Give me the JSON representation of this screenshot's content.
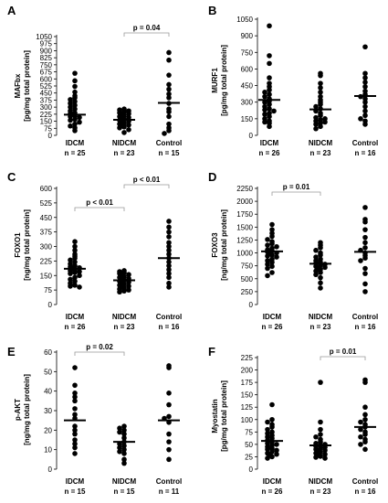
{
  "chart_data": [
    {
      "type": "scatter",
      "panel": "A",
      "ylabel": "MAFbx\n[pg/mg total protein]",
      "yticks": [
        0,
        75,
        150,
        225,
        300,
        375,
        450,
        525,
        600,
        675,
        750,
        825,
        900,
        975,
        1050
      ],
      "ylim": [
        0,
        1050
      ],
      "grid": false,
      "categories": [
        "IDCM\nn = 25",
        "NIDCM\nn = 23",
        "Control\nn = 15"
      ],
      "means": [
        220,
        165,
        345
      ],
      "series": [
        {
          "category": 0,
          "values": [
            660,
            580,
            520,
            460,
            420,
            400,
            380,
            360,
            340,
            320,
            300,
            280,
            260,
            240,
            230,
            210,
            200,
            190,
            170,
            160,
            140,
            120,
            100,
            80,
            50
          ]
        },
        {
          "category": 1,
          "values": [
            280,
            270,
            260,
            250,
            240,
            230,
            220,
            210,
            200,
            190,
            180,
            170,
            160,
            150,
            140,
            130,
            120,
            110,
            100,
            90,
            80,
            60,
            30
          ]
        },
        {
          "category": 2,
          "values": [
            880,
            800,
            640,
            540,
            490,
            440,
            400,
            340,
            280,
            250,
            200,
            120,
            80,
            50,
            20
          ]
        }
      ],
      "comparisons": [
        {
          "from": 1,
          "to": 2,
          "label": "p = 0.04"
        }
      ]
    },
    {
      "type": "scatter",
      "panel": "B",
      "ylabel": "MURF1\n[pg/mg total protein]",
      "yticks": [
        0,
        150,
        300,
        450,
        600,
        750,
        900,
        1050
      ],
      "ylim": [
        0,
        1050
      ],
      "grid": false,
      "categories": [
        "IDCM\nn = 26",
        "NIDCM\nn = 23",
        "Control\nn = 16"
      ],
      "means": [
        320,
        235,
        355
      ],
      "series": [
        {
          "category": 0,
          "values": [
            990,
            720,
            650,
            520,
            470,
            440,
            410,
            390,
            370,
            350,
            330,
            310,
            300,
            280,
            260,
            240,
            230,
            220,
            200,
            190,
            170,
            150,
            130,
            120,
            110,
            80
          ]
        },
        {
          "category": 1,
          "values": [
            560,
            540,
            470,
            430,
            390,
            350,
            320,
            300,
            280,
            260,
            240,
            220,
            200,
            180,
            160,
            150,
            140,
            130,
            120,
            110,
            100,
            80,
            60
          ]
        },
        {
          "category": 2,
          "values": [
            800,
            560,
            520,
            480,
            440,
            400,
            370,
            350,
            330,
            300,
            260,
            220,
            180,
            150,
            130,
            100
          ]
        }
      ],
      "comparisons": []
    },
    {
      "type": "scatter",
      "panel": "C",
      "ylabel": "FOXO1\n[ng/mg total protein]",
      "yticks": [
        0,
        75,
        150,
        225,
        300,
        375,
        450,
        525,
        600
      ],
      "ylim": [
        0,
        600
      ],
      "grid": false,
      "categories": [
        "IDCM\nn = 26",
        "NIDCM\nn = 23",
        "Control\nn = 16"
      ],
      "means": [
        185,
        125,
        240
      ],
      "series": [
        {
          "category": 0,
          "values": [
            325,
            300,
            280,
            260,
            250,
            240,
            230,
            220,
            210,
            200,
            195,
            190,
            185,
            180,
            175,
            170,
            165,
            160,
            150,
            140,
            130,
            120,
            110,
            100,
            95,
            90
          ]
        },
        {
          "category": 1,
          "values": [
            175,
            170,
            165,
            160,
            155,
            150,
            145,
            140,
            135,
            130,
            125,
            120,
            115,
            110,
            105,
            100,
            95,
            90,
            85,
            80,
            75,
            70,
            65
          ]
        },
        {
          "category": 2,
          "values": [
            430,
            400,
            375,
            350,
            320,
            300,
            280,
            260,
            240,
            220,
            200,
            180,
            160,
            140,
            110,
            90
          ]
        }
      ],
      "comparisons": [
        {
          "from": 0,
          "to": 1,
          "label": "p < 0.01"
        },
        {
          "from": 1,
          "to": 2,
          "label": "p < 0.01"
        }
      ]
    },
    {
      "type": "scatter",
      "panel": "D",
      "ylabel": "FOXO3\n[ng/mg total protein]",
      "yticks": [
        0,
        250,
        500,
        750,
        1000,
        1250,
        1500,
        1750,
        2000,
        2250
      ],
      "ylim": [
        0,
        2250
      ],
      "grid": false,
      "categories": [
        "IDCM\nn = 26",
        "NIDCM\nn = 23",
        "Control\nn = 16"
      ],
      "means": [
        1030,
        790,
        1020
      ],
      "series": [
        {
          "category": 0,
          "values": [
            1550,
            1450,
            1380,
            1320,
            1260,
            1220,
            1180,
            1150,
            1120,
            1090,
            1060,
            1040,
            1020,
            1000,
            980,
            960,
            940,
            920,
            880,
            850,
            820,
            780,
            740,
            700,
            620,
            560
          ]
        },
        {
          "category": 1,
          "values": [
            1200,
            1150,
            1100,
            1050,
            1000,
            960,
            920,
            880,
            850,
            820,
            800,
            780,
            760,
            740,
            720,
            700,
            680,
            650,
            620,
            580,
            520,
            420,
            320
          ]
        },
        {
          "category": 2,
          "values": [
            1880,
            1650,
            1600,
            1450,
            1300,
            1200,
            1100,
            1050,
            1000,
            950,
            900,
            850,
            700,
            600,
            400,
            250
          ]
        }
      ],
      "comparisons": [
        {
          "from": 0,
          "to": 1,
          "label": "p = 0.01"
        }
      ]
    },
    {
      "type": "scatter",
      "panel": "E",
      "ylabel": "p-AKT\n[ng/mg total protein]",
      "yticks": [
        0,
        10,
        20,
        30,
        40,
        50,
        60
      ],
      "ylim": [
        0,
        60
      ],
      "grid": false,
      "categories": [
        "IDCM\nn = 15",
        "NIDCM\nn = 15",
        "Control\nn = 11"
      ],
      "means": [
        25,
        14,
        25
      ],
      "series": [
        {
          "category": 0,
          "values": [
            52,
            43,
            39,
            37,
            35,
            31,
            28,
            26,
            22,
            20,
            18,
            15,
            13,
            11,
            8
          ]
        },
        {
          "category": 1,
          "values": [
            22,
            21,
            20,
            19,
            18,
            16,
            14,
            13,
            12,
            11,
            10,
            9,
            8,
            5,
            3
          ]
        },
        {
          "category": 2,
          "values": [
            53,
            52,
            39,
            33,
            27,
            26,
            24,
            18,
            14,
            10,
            5
          ]
        }
      ],
      "comparisons": [
        {
          "from": 0,
          "to": 1,
          "label": "p = 0.02"
        }
      ]
    },
    {
      "type": "scatter",
      "panel": "F",
      "ylabel": "Myostatin\n[pg/mg total protein]",
      "yticks": [
        0,
        25,
        50,
        75,
        100,
        125,
        150,
        175,
        200,
        225
      ],
      "ylim": [
        0,
        225
      ],
      "grid": false,
      "categories": [
        "IDCM\nn = 26",
        "NIDCM\nn = 23",
        "Control\nn = 16"
      ],
      "means": [
        57,
        48,
        85
      ],
      "series": [
        {
          "category": 0,
          "values": [
            130,
            100,
            95,
            90,
            85,
            80,
            75,
            72,
            68,
            65,
            62,
            58,
            55,
            52,
            50,
            48,
            45,
            42,
            40,
            38,
            35,
            32,
            30,
            28,
            25,
            22
          ]
        },
        {
          "category": 1,
          "values": [
            175,
            95,
            80,
            70,
            65,
            60,
            55,
            52,
            50,
            48,
            46,
            44,
            42,
            40,
            38,
            36,
            34,
            32,
            30,
            28,
            26,
            24,
            22
          ]
        },
        {
          "category": 2,
          "values": [
            180,
            175,
            125,
            110,
            100,
            95,
            90,
            85,
            80,
            75,
            70,
            65,
            60,
            55,
            50,
            40
          ]
        }
      ],
      "comparisons": [
        {
          "from": 1,
          "to": 2,
          "label": "p = 0.01"
        }
      ]
    }
  ]
}
